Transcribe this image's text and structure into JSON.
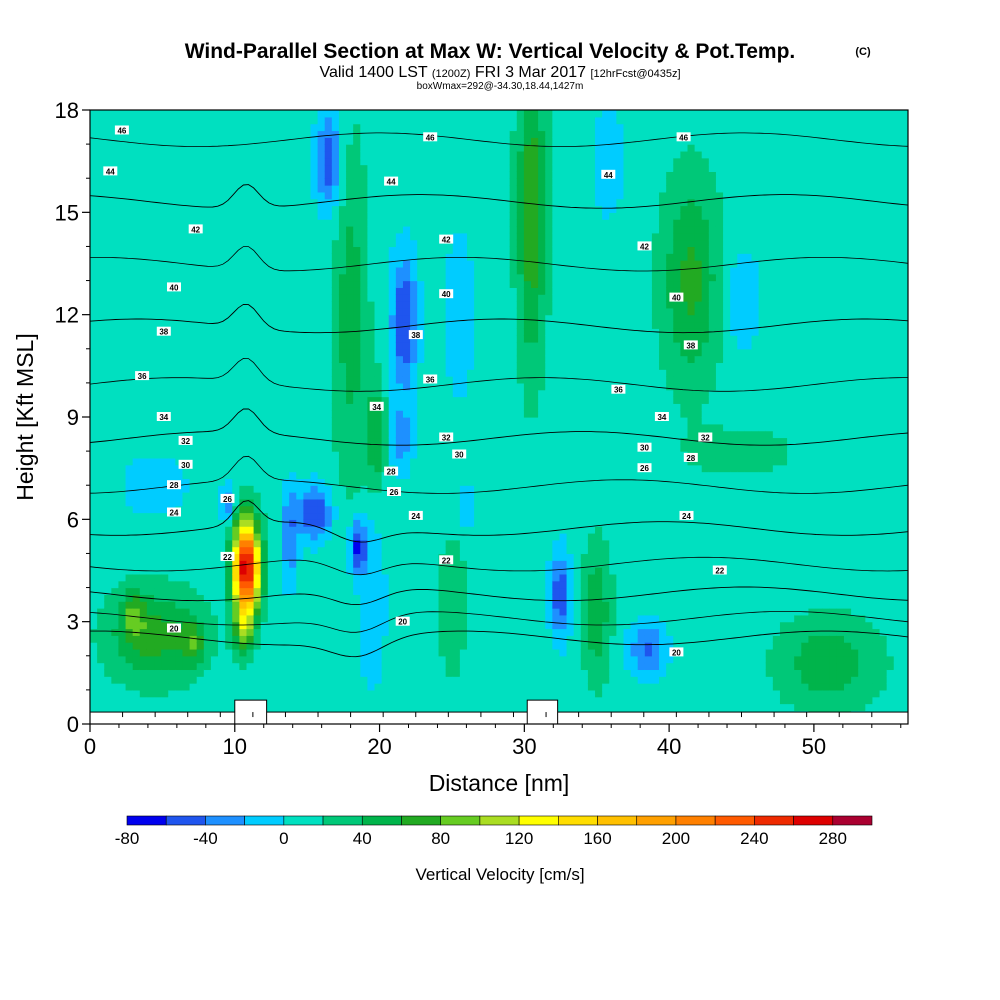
{
  "chart_data": {
    "type": "heatmap",
    "title": "Wind-Parallel Section at Max W: Vertical Velocity & Pot.Temp.",
    "copyright": "(C)",
    "subtitle": {
      "valid": "Valid 1400 LST",
      "zulu": "(1200Z)",
      "date": "FRI 3 Mar 2017",
      "forecast": "[12hrFcst@0435z]"
    },
    "info_line": "boxWmax=292@-34.30,18.44,1427m",
    "xlabel": "Distance [nm]",
    "ylabel": "Height [Kft MSL]",
    "xlim": [
      0,
      56.5
    ],
    "ylim": [
      0,
      18
    ],
    "x_ticks": [
      0,
      10,
      20,
      30,
      40,
      50
    ],
    "x_tick_labels": [
      "0",
      "10",
      "20",
      "30",
      "40",
      "50"
    ],
    "y_ticks": [
      0,
      3,
      6,
      9,
      12,
      15,
      18
    ],
    "y_tick_labels": [
      "0",
      "3",
      "6",
      "9",
      "12",
      "15",
      "18"
    ],
    "colorbar": {
      "label": "Vertical Velocity [cm/s]",
      "boundaries": [
        -80,
        -60,
        -40,
        -20,
        0,
        20,
        40,
        60,
        80,
        100,
        120,
        140,
        160,
        180,
        200,
        220,
        240,
        260,
        280,
        300
      ],
      "tick_values": [
        -80,
        -40,
        0,
        40,
        80,
        120,
        160,
        200,
        240,
        280
      ],
      "tick_labels": [
        "-80",
        "-40",
        "0",
        "40",
        "80",
        "120",
        "160",
        "200",
        "240",
        "280"
      ],
      "colors": [
        "#0000ee",
        "#1f55ee",
        "#1e90ff",
        "#00ccff",
        "#00e0c0",
        "#00c878",
        "#00b44b",
        "#22aa22",
        "#66cc22",
        "#aadd22",
        "#ffff00",
        "#ffdd00",
        "#ffc000",
        "#ffa000",
        "#ff8000",
        "#ff5a00",
        "#ee2a00",
        "#dd0000",
        "#aa0030"
      ]
    },
    "background_velocity": 10,
    "velocity_features": [
      {
        "x": 10.8,
        "y": 4.6,
        "sx": 0.9,
        "sy": 1.35,
        "w": 270
      },
      {
        "x": 10.6,
        "y": 2.8,
        "sx": 0.7,
        "sy": 0.8,
        "w": 60
      },
      {
        "x": 4.5,
        "y": 2.6,
        "sx": 3.2,
        "sy": 1.3,
        "w": 60
      },
      {
        "x": 3.0,
        "y": 3.2,
        "sx": 0.8,
        "sy": 0.7,
        "w": 45
      },
      {
        "x": 7.2,
        "y": 2.4,
        "sx": 0.8,
        "sy": 0.6,
        "w": 45
      },
      {
        "x": 4.5,
        "y": 7.0,
        "sx": 3.5,
        "sy": 1.4,
        "w": -15
      },
      {
        "x": 9.5,
        "y": 6.5,
        "sx": 0.5,
        "sy": 0.5,
        "w": -55
      },
      {
        "x": 15.5,
        "y": 6.2,
        "sx": 1.2,
        "sy": 0.8,
        "w": -70
      },
      {
        "x": 18.5,
        "y": 5.2,
        "sx": 0.6,
        "sy": 0.8,
        "w": -80
      },
      {
        "x": 13.8,
        "y": 5.5,
        "sx": 0.6,
        "sy": 1.5,
        "w": -45
      },
      {
        "x": 16.5,
        "y": 16.5,
        "sx": 0.9,
        "sy": 1.5,
        "w": -65
      },
      {
        "x": 21.7,
        "y": 11.8,
        "sx": 0.9,
        "sy": 2.0,
        "w": -70
      },
      {
        "x": 21.5,
        "y": 8.3,
        "sx": 0.8,
        "sy": 1.0,
        "w": -40
      },
      {
        "x": 19.5,
        "y": 3.5,
        "sx": 0.9,
        "sy": 2.5,
        "w": -30
      },
      {
        "x": 18.0,
        "y": 12.0,
        "sx": 1.2,
        "sy": 5.0,
        "w": 40
      },
      {
        "x": 19.8,
        "y": 8.5,
        "sx": 0.7,
        "sy": 1.5,
        "w": 50
      },
      {
        "x": 25.5,
        "y": 12.0,
        "sx": 1.6,
        "sy": 4.0,
        "w": -15
      },
      {
        "x": 26.0,
        "y": 6.3,
        "sx": 0.5,
        "sy": 0.7,
        "w": -25
      },
      {
        "x": 30.5,
        "y": 15.0,
        "sx": 1.0,
        "sy": 4.5,
        "w": 65
      },
      {
        "x": 32.5,
        "y": 3.8,
        "sx": 0.7,
        "sy": 1.3,
        "w": -65
      },
      {
        "x": 35.0,
        "y": 3.3,
        "sx": 1.0,
        "sy": 2.0,
        "w": 45
      },
      {
        "x": 35.8,
        "y": 16.5,
        "sx": 1.0,
        "sy": 1.6,
        "w": -30
      },
      {
        "x": 38.5,
        "y": 2.2,
        "sx": 1.3,
        "sy": 0.8,
        "w": -55
      },
      {
        "x": 41.5,
        "y": 13.0,
        "sx": 2.0,
        "sy": 3.0,
        "w": 55
      },
      {
        "x": 45.0,
        "y": 12.5,
        "sx": 1.2,
        "sy": 1.5,
        "w": -30
      },
      {
        "x": 51.0,
        "y": 1.8,
        "sx": 3.5,
        "sy": 1.3,
        "w": 45
      },
      {
        "x": 25.0,
        "y": 3.5,
        "sx": 1.0,
        "sy": 2.0,
        "w": 30
      },
      {
        "x": 45.0,
        "y": 8.0,
        "sx": 3.5,
        "sy": 0.7,
        "w": 25
      }
    ],
    "theta_levels": [
      20,
      22,
      24,
      26,
      28,
      30,
      32,
      34,
      36,
      38,
      40,
      42,
      44,
      46
    ],
    "contour_labels": [
      {
        "x": 5.8,
        "y": 2.8,
        "text": "20"
      },
      {
        "x": 21.6,
        "y": 3.0,
        "text": "20"
      },
      {
        "x": 40.5,
        "y": 2.1,
        "text": "20"
      },
      {
        "x": 9.5,
        "y": 4.9,
        "text": "22"
      },
      {
        "x": 24.6,
        "y": 4.8,
        "text": "22"
      },
      {
        "x": 43.5,
        "y": 4.5,
        "text": "22"
      },
      {
        "x": 5.8,
        "y": 6.2,
        "text": "24"
      },
      {
        "x": 22.5,
        "y": 6.1,
        "text": "24"
      },
      {
        "x": 41.2,
        "y": 6.1,
        "text": "24"
      },
      {
        "x": 9.5,
        "y": 6.6,
        "text": "26"
      },
      {
        "x": 21.0,
        "y": 6.8,
        "text": "26"
      },
      {
        "x": 38.3,
        "y": 7.5,
        "text": "26"
      },
      {
        "x": 5.8,
        "y": 7.0,
        "text": "28"
      },
      {
        "x": 20.8,
        "y": 7.4,
        "text": "28"
      },
      {
        "x": 41.5,
        "y": 7.8,
        "text": "28"
      },
      {
        "x": 6.6,
        "y": 7.6,
        "text": "30"
      },
      {
        "x": 25.5,
        "y": 7.9,
        "text": "30"
      },
      {
        "x": 38.3,
        "y": 8.1,
        "text": "30"
      },
      {
        "x": 6.6,
        "y": 8.3,
        "text": "32"
      },
      {
        "x": 24.6,
        "y": 8.4,
        "text": "32"
      },
      {
        "x": 42.5,
        "y": 8.4,
        "text": "32"
      },
      {
        "x": 5.1,
        "y": 9.0,
        "text": "34"
      },
      {
        "x": 19.8,
        "y": 9.3,
        "text": "34"
      },
      {
        "x": 39.5,
        "y": 9.0,
        "text": "34"
      },
      {
        "x": 3.6,
        "y": 10.2,
        "text": "36"
      },
      {
        "x": 23.5,
        "y": 10.1,
        "text": "36"
      },
      {
        "x": 36.5,
        "y": 9.8,
        "text": "36"
      },
      {
        "x": 5.1,
        "y": 11.5,
        "text": "38"
      },
      {
        "x": 22.5,
        "y": 11.4,
        "text": "38"
      },
      {
        "x": 41.5,
        "y": 11.1,
        "text": "38"
      },
      {
        "x": 5.8,
        "y": 12.8,
        "text": "40"
      },
      {
        "x": 24.6,
        "y": 12.6,
        "text": "40"
      },
      {
        "x": 40.5,
        "y": 12.5,
        "text": "40"
      },
      {
        "x": 7.3,
        "y": 14.5,
        "text": "42"
      },
      {
        "x": 24.6,
        "y": 14.2,
        "text": "42"
      },
      {
        "x": 38.3,
        "y": 14.0,
        "text": "42"
      },
      {
        "x": 1.4,
        "y": 16.2,
        "text": "44"
      },
      {
        "x": 20.8,
        "y": 15.9,
        "text": "44"
      },
      {
        "x": 35.8,
        "y": 16.1,
        "text": "44"
      },
      {
        "x": 2.2,
        "y": 17.4,
        "text": "46"
      },
      {
        "x": 23.5,
        "y": 17.2,
        "text": "46"
      },
      {
        "x": 41.0,
        "y": 17.2,
        "text": "46"
      }
    ],
    "terrain": [
      {
        "x_start": 10.0,
        "x_end": 12.2,
        "top": 0.7
      },
      {
        "x_start": 30.2,
        "x_end": 32.3,
        "top": 0.7
      }
    ]
  }
}
